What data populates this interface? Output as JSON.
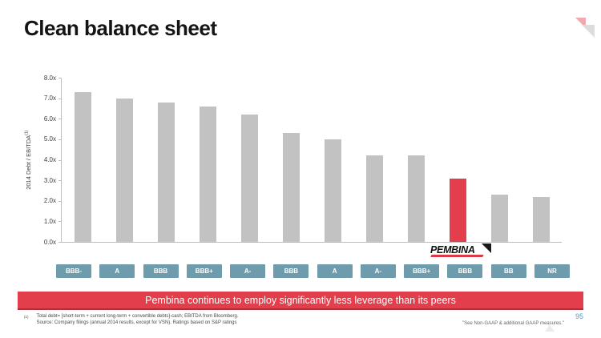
{
  "slide": {
    "title": "Clean balance sheet",
    "page_number": "95"
  },
  "chart_data": {
    "type": "bar",
    "title": "",
    "xlabel": "",
    "ylabel": "2014 Debt / EBITDA",
    "ylabel_sup": "(1)",
    "ylim": [
      0,
      8
    ],
    "ytick_step": 1,
    "ytick_suffix": "x",
    "grid": false,
    "legend": "none",
    "categories": [
      "BBB-",
      "A",
      "BBB",
      "BBB+",
      "A-",
      "BBB",
      "A",
      "A-",
      "BBB+",
      "BBB",
      "BB",
      "NR"
    ],
    "values": [
      7.3,
      7.0,
      6.8,
      6.6,
      6.2,
      5.3,
      5.0,
      4.2,
      4.2,
      3.1,
      2.3,
      2.2
    ],
    "highlight_index": 9,
    "highlight_label": "PEMBINA",
    "bar_color": "#c2c2c2",
    "highlight_color": "#e23e4b",
    "category_box_color": "#6f9cad"
  },
  "banner": {
    "text": "Pembina continues to employ significantly less leverage than its peers",
    "background_color": "#e23e4b"
  },
  "footnotes": {
    "marker": "(1)",
    "line1": "Total debt= [short-term + current long-term + convertible debts]-cash; EBITDA from Bloomberg.",
    "line2": "Source: Company filings (annual 2014 results, except for VSN). Ratings based on S&P ratings",
    "gaap_note": "\"See Non-GAAP & additional GAAP measures.\""
  }
}
